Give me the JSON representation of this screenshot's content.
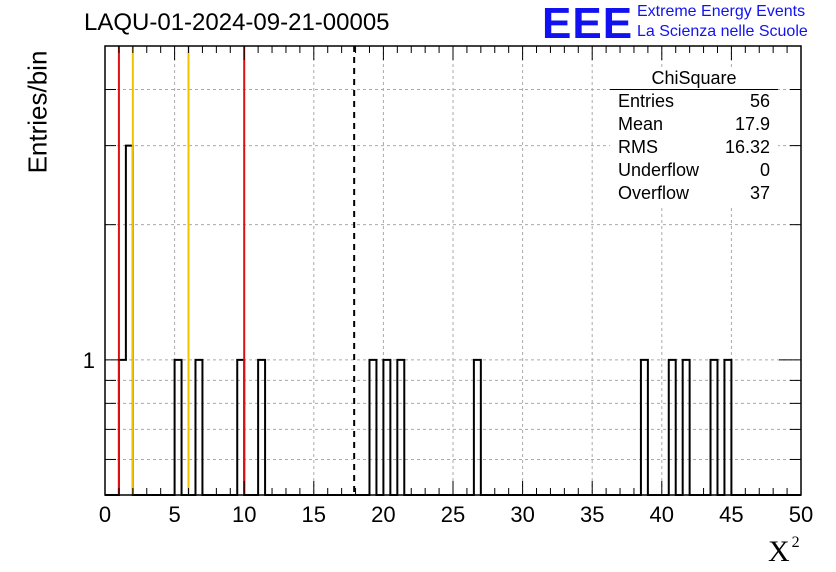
{
  "header": {
    "run_title": "LAQU-01-2024-09-21-00005",
    "logo_text": "EEE",
    "logo_line1": "Extreme Energy Events",
    "logo_line2": "La Scienza nelle Scuole",
    "logo_color": "#1212f0"
  },
  "stats_box": {
    "title": "ChiSquare",
    "rows": [
      {
        "label": "Entries",
        "value": "56"
      },
      {
        "label": "Mean",
        "value": "17.9"
      },
      {
        "label": "RMS",
        "value": "16.32"
      },
      {
        "label": "Underflow",
        "value": "0"
      },
      {
        "label": "Overflow",
        "value": "37"
      }
    ]
  },
  "chart_data": {
    "type": "bar",
    "histogram": "step",
    "title": "LAQU-01-2024-09-21-00005",
    "xlabel": "X",
    "xlabel_superscript": "2",
    "ylabel": "Entries/bin",
    "xlim": [
      0,
      50
    ],
    "ylim": [
      0.5,
      5
    ],
    "y_scale": "log",
    "bin_width": 0.5,
    "x_ticks": [
      "0",
      "5",
      "10",
      "15",
      "20",
      "25",
      "30",
      "35",
      "40",
      "45",
      "50"
    ],
    "y_tick_labels": [
      {
        "value": 1,
        "label": "1"
      }
    ],
    "grid": true,
    "bins": [
      {
        "x": 1.0,
        "count": 1
      },
      {
        "x": 1.5,
        "count": 3
      },
      {
        "x": 5.0,
        "count": 1
      },
      {
        "x": 6.5,
        "count": 1
      },
      {
        "x": 9.5,
        "count": 1
      },
      {
        "x": 11.0,
        "count": 1
      },
      {
        "x": 19.0,
        "count": 1
      },
      {
        "x": 20.0,
        "count": 1
      },
      {
        "x": 21.0,
        "count": 1
      },
      {
        "x": 26.5,
        "count": 1
      },
      {
        "x": 38.5,
        "count": 1
      },
      {
        "x": 40.5,
        "count": 1
      },
      {
        "x": 41.5,
        "count": 1
      },
      {
        "x": 43.5,
        "count": 1
      },
      {
        "x": 44.5,
        "count": 1
      }
    ],
    "reference_lines": [
      {
        "x": 1,
        "color": "#dd1111",
        "style": "solid"
      },
      {
        "x": 2,
        "color": "#f2c200",
        "style": "solid"
      },
      {
        "x": 6,
        "color": "#f2c200",
        "style": "solid"
      },
      {
        "x": 10,
        "color": "#dd1111",
        "style": "solid"
      },
      {
        "x": 17.9,
        "color": "#000000",
        "style": "dashed"
      }
    ],
    "legend": "top-right"
  }
}
